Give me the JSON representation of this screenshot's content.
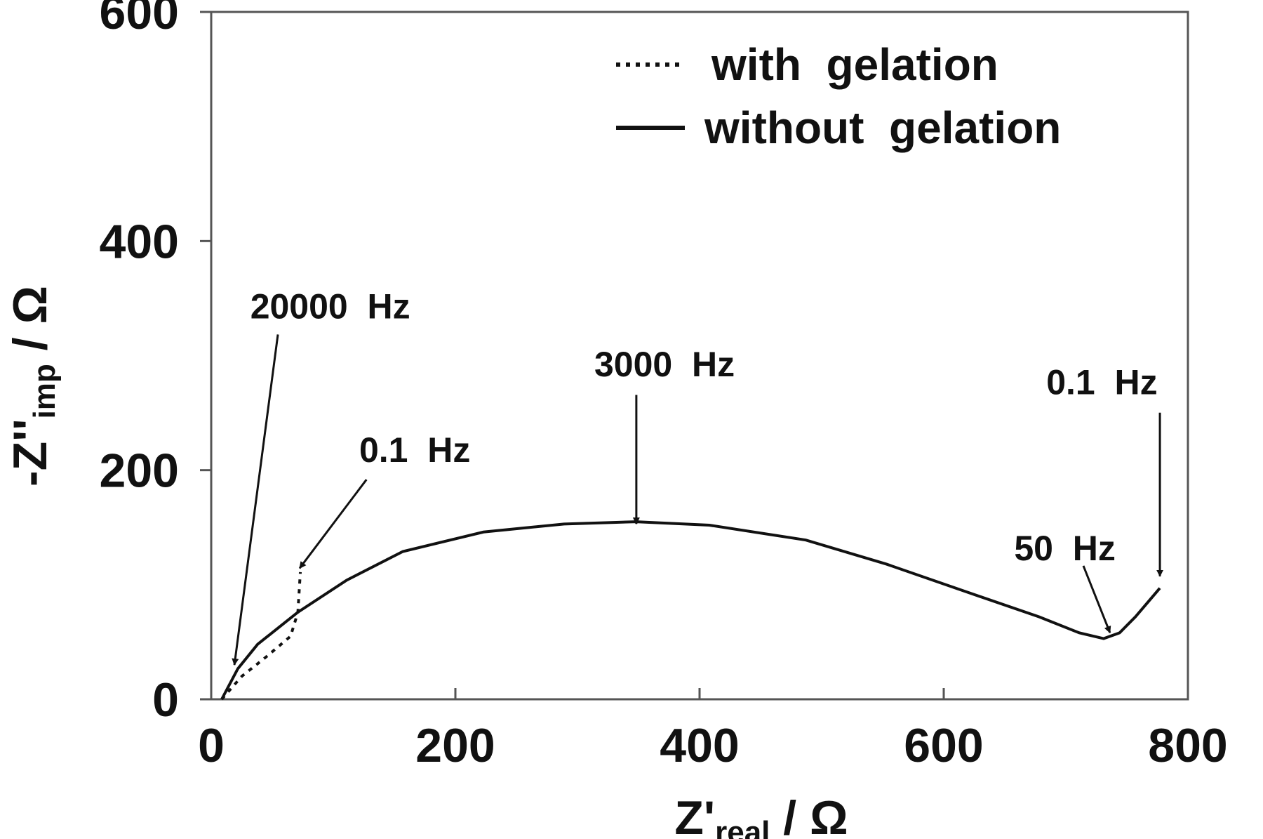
{
  "chart_data": {
    "type": "line",
    "xlabel": [
      "Z'",
      "real",
      " / Ω"
    ],
    "ylabel": [
      "-Z''",
      "imp",
      " / Ω"
    ],
    "xlim": [
      0,
      800
    ],
    "xticks": [
      0,
      200,
      400,
      600,
      800
    ],
    "ylim": [
      0,
      600
    ],
    "yticks": [
      0,
      200,
      400,
      600
    ],
    "grid": false,
    "legend": "upper right",
    "series": [
      {
        "name": "with  gelation",
        "color": "#111111",
        "dash": "dotted",
        "x": [
          8.6,
          25,
          45,
          65,
          71,
          73
        ],
        "values": [
          0,
          20,
          37,
          55,
          76,
          111
        ]
      },
      {
        "name": "without  gelation",
        "color": "#111111",
        "dash": "solid",
        "x": [
          8.6,
          21.8,
          38,
          71,
          111,
          157,
          223,
          289,
          348,
          408,
          487,
          553,
          618,
          678,
          711,
          731,
          744,
          757,
          777
        ],
        "values": [
          0,
          26.7,
          48,
          76,
          104,
          129,
          146,
          153,
          155,
          152,
          139,
          118,
          94,
          72,
          58,
          53,
          58,
          72,
          97
        ]
      }
    ],
    "annotations": [
      "20000  Hz",
      "0.1  Hz",
      "3000  Hz",
      "0.1  Hz",
      "50  Hz"
    ]
  }
}
